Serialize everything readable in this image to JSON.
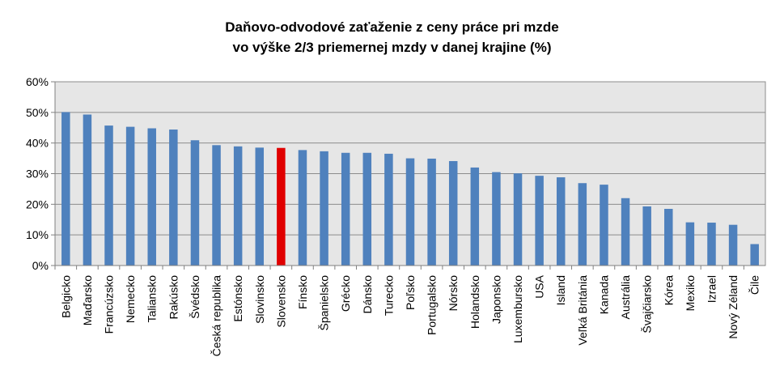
{
  "chart_data": {
    "type": "bar",
    "title_lines": [
      "Daňovo-odvodové zaťaženie z ceny práce pri mzde",
      "vo výške 2/3 priemernej mzdy v danej krajine (%)"
    ],
    "xlabel": "",
    "ylabel": "",
    "ylim": [
      0,
      60
    ],
    "yticks": [
      "0%",
      "10%",
      "20%",
      "30%",
      "40%",
      "50%",
      "60%"
    ],
    "grid": true,
    "legend": "none",
    "colors": {
      "bar": "#4F81BD",
      "highlight": "#E00000",
      "plot_bg": "#E6E6E6",
      "grid": "#8C8C8C"
    },
    "highlight_category": "Slovensko",
    "categories": [
      "Belgicko",
      "Maďarsko",
      "Francúzsko",
      "Nemecko",
      "Taliansko",
      "Rakúsko",
      "Švédsko",
      "Česká republika",
      "Estónsko",
      "Slovinsko",
      "Slovensko",
      "Fínsko",
      "Španielsko",
      "Grécko",
      "Dánsko",
      "Turecko",
      "Poľsko",
      "Portugalsko",
      "Nórsko",
      "Holandsko",
      "Japonsko",
      "Luxembursko",
      "USA",
      "Island",
      "Veľká Británia",
      "Kanada",
      "Austrália",
      "Švajčiarsko",
      "Kórea",
      "Mexiko",
      "Izrael",
      "Nový Zéland",
      "Čile"
    ],
    "values": [
      50.1,
      49.3,
      45.7,
      45.3,
      44.8,
      44.4,
      40.9,
      39.3,
      38.9,
      38.5,
      38.4,
      37.7,
      37.3,
      36.8,
      36.8,
      36.5,
      35.0,
      34.9,
      34.1,
      32.0,
      30.5,
      30.1,
      29.3,
      28.8,
      26.9,
      26.4,
      22.0,
      19.3,
      18.5,
      14.1,
      14.0,
      13.3,
      7.0
    ]
  }
}
